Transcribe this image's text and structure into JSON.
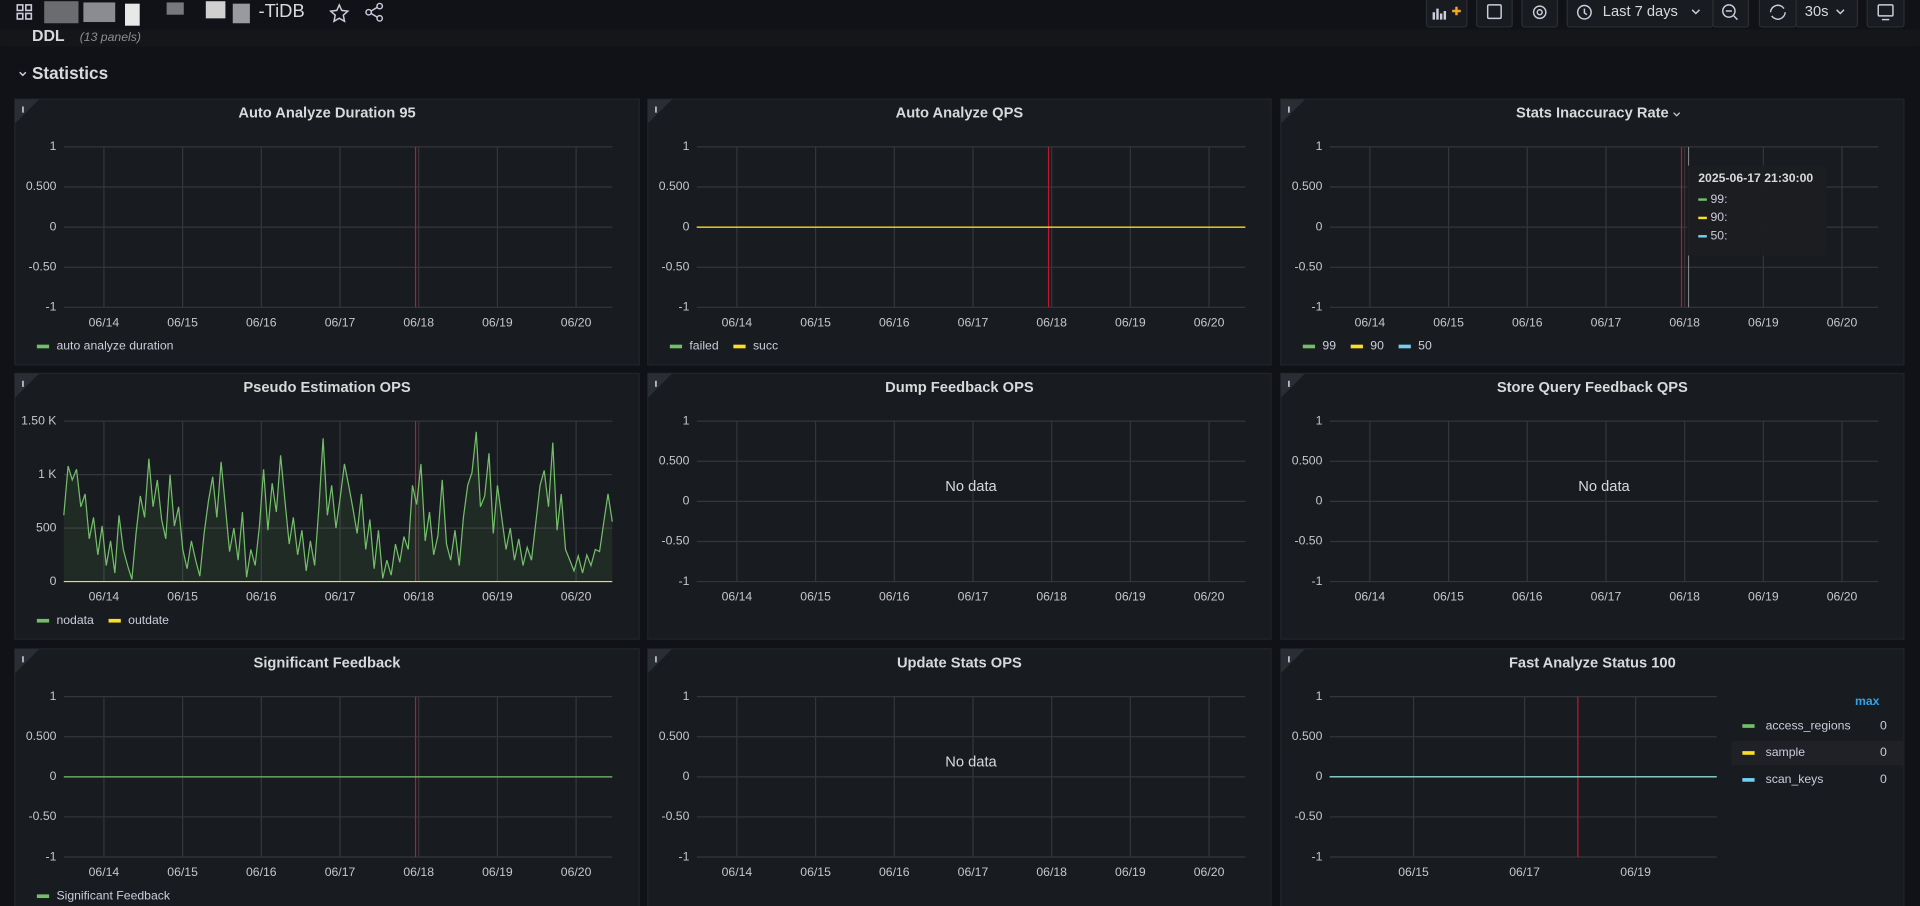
{
  "header": {
    "title": "-TiDB",
    "time_range": "Last 7 days",
    "refresh": "30s"
  },
  "rows": [
    {
      "title": "DDL",
      "note": "(13 panels)"
    },
    {
      "title": "Statistics"
    }
  ],
  "chart_data": [
    {
      "type": "line",
      "title": "Auto Analyze Duration 95",
      "ylim": [
        -1,
        1
      ],
      "yticks": [
        -1,
        {
          "value": -0.5,
          "label": "-0.50"
        },
        0,
        {
          "value": 0.5,
          "label": "0.500"
        },
        1
      ],
      "xticks": [
        "06/14",
        "06/15",
        "06/16",
        "06/17",
        "06/18",
        "06/19",
        "06/20"
      ],
      "grid": true,
      "legend": "bottom",
      "series": [
        {
          "name": "auto analyze duration",
          "color": "#73bf69"
        }
      ]
    },
    {
      "type": "line",
      "title": "Auto Analyze QPS",
      "ylim": [
        -1,
        1
      ],
      "yticks": [
        -1,
        {
          "value": -0.5,
          "label": "-0.50"
        },
        0,
        {
          "value": 0.5,
          "label": "0.500"
        },
        1
      ],
      "xticks": [
        "06/14",
        "06/15",
        "06/16",
        "06/17",
        "06/18",
        "06/19",
        "06/20"
      ],
      "grid": true,
      "legend": "bottom",
      "series": [
        {
          "name": "failed",
          "color": "#73bf69",
          "values": [
            0,
            0
          ]
        },
        {
          "name": "succ",
          "color": "#fade2a",
          "values": [
            0,
            0
          ]
        }
      ]
    },
    {
      "type": "line",
      "title": "Stats Inaccuracy Rate",
      "ylim": [
        -1,
        1
      ],
      "yticks": [
        -1,
        {
          "value": -0.5,
          "label": "-0.50"
        },
        0,
        {
          "value": 0.5,
          "label": "0.500"
        },
        1
      ],
      "xticks": [
        "06/14",
        "06/15",
        "06/16",
        "06/17",
        "06/18",
        "06/19",
        "06/20"
      ],
      "grid": true,
      "legend": "bottom",
      "series": [
        {
          "name": "99",
          "color": "#73bf69"
        },
        {
          "name": "90",
          "color": "#fade2a"
        },
        {
          "name": "50",
          "color": "#73d0f0"
        }
      ],
      "tooltip": {
        "time": "2025-06-17 21:30:00",
        "items": [
          "99:",
          "90:",
          "50:"
        ]
      }
    },
    {
      "type": "line",
      "title": "Pseudo Estimation OPS",
      "ylim": [
        0,
        1500
      ],
      "yticks": [
        0,
        500,
        {
          "value": 1000,
          "label": "1 K"
        },
        {
          "value": 1500,
          "label": "1.50 K"
        }
      ],
      "xticks": [
        "06/14",
        "06/15",
        "06/16",
        "06/17",
        "06/18",
        "06/19",
        "06/20"
      ],
      "grid": true,
      "legend": "bottom",
      "series": [
        {
          "name": "nodata",
          "color": "#73bf69",
          "fill": true,
          "values": [
            620,
            1080,
            950,
            1050,
            700,
            820,
            400,
            600,
            250,
            520,
            150,
            380,
            80,
            620,
            300,
            150,
            20,
            450,
            800,
            600,
            1150,
            700,
            950,
            580,
            400,
            1000,
            520,
            700,
            300,
            120,
            380,
            200,
            50,
            450,
            750,
            980,
            600,
            1120,
            700,
            280,
            500,
            200,
            650,
            40,
            300,
            150,
            520,
            1050,
            480,
            920,
            650,
            1180,
            760,
            350,
            600,
            250,
            480,
            100,
            380,
            150,
            700,
            1340,
            620,
            900,
            500,
            780,
            1100,
            900,
            680,
            450,
            820,
            300,
            580,
            120,
            480,
            30,
            200,
            60,
            350,
            180,
            420,
            300,
            900,
            720,
            1100,
            380,
            650,
            250,
            430,
            950,
            350,
            200,
            480,
            150,
            600,
            900,
            1020,
            1400,
            700,
            800,
            1200,
            450,
            900,
            600,
            300,
            500,
            200,
            400,
            150,
            320,
            200,
            550,
            900,
            1040,
            700,
            1300,
            480,
            820,
            300,
            200,
            100,
            240,
            80,
            250,
            150,
            300,
            280,
            560,
            820,
            560
          ]
        },
        {
          "name": "outdate",
          "color": "#fade2a",
          "values": [
            0,
            0
          ]
        }
      ]
    },
    {
      "type": "line",
      "title": "Dump Feedback OPS",
      "ylim": [
        -1,
        1
      ],
      "yticks": [
        -1,
        {
          "value": -0.5,
          "label": "-0.50"
        },
        0,
        {
          "value": 0.5,
          "label": "0.500"
        },
        1
      ],
      "xticks": [
        "06/14",
        "06/15",
        "06/16",
        "06/17",
        "06/18",
        "06/19",
        "06/20"
      ],
      "grid": true,
      "message": "No data",
      "series": []
    },
    {
      "type": "line",
      "title": "Store Query Feedback QPS",
      "ylim": [
        -1,
        1
      ],
      "yticks": [
        -1,
        {
          "value": -0.5,
          "label": "-0.50"
        },
        0,
        {
          "value": 0.5,
          "label": "0.500"
        },
        1
      ],
      "xticks": [
        "06/14",
        "06/15",
        "06/16",
        "06/17",
        "06/18",
        "06/19",
        "06/20"
      ],
      "grid": true,
      "message": "No data",
      "series": []
    },
    {
      "type": "line",
      "title": "Significant Feedback",
      "ylim": [
        -1,
        1
      ],
      "yticks": [
        -1,
        {
          "value": -0.5,
          "label": "-0.50"
        },
        0,
        {
          "value": 0.5,
          "label": "0.500"
        },
        1
      ],
      "xticks": [
        "06/14",
        "06/15",
        "06/16",
        "06/17",
        "06/18",
        "06/19",
        "06/20"
      ],
      "grid": true,
      "legend": "bottom",
      "series": [
        {
          "name": "Significant Feedback",
          "color": "#73bf69",
          "values": [
            0,
            0
          ]
        }
      ]
    },
    {
      "type": "line",
      "title": "Update Stats OPS",
      "ylim": [
        -1,
        1
      ],
      "yticks": [
        -1,
        {
          "value": -0.5,
          "label": "-0.50"
        },
        0,
        {
          "value": 0.5,
          "label": "0.500"
        },
        1
      ],
      "xticks": [
        "06/14",
        "06/15",
        "06/16",
        "06/17",
        "06/18",
        "06/19",
        "06/20"
      ],
      "grid": true,
      "message": "No data",
      "series": []
    },
    {
      "type": "line",
      "title": "Fast Analyze Status 100",
      "ylim": [
        -1,
        1
      ],
      "yticks": [
        -1,
        {
          "value": -0.5,
          "label": "-0.50"
        },
        0,
        {
          "value": 0.5,
          "label": "0.500"
        },
        1
      ],
      "xticks": [
        "06/15",
        "06/17",
        "06/19"
      ],
      "grid": true,
      "legend": "right",
      "legend_column": "max",
      "series": [
        {
          "name": "access_regions",
          "color": "#73bf69",
          "values": [
            0,
            0
          ],
          "max": 0
        },
        {
          "name": "sample",
          "color": "#fade2a",
          "values": [
            0,
            0
          ],
          "max": 0
        },
        {
          "name": "scan_keys",
          "color": "#73d0f0",
          "values": [
            0,
            0
          ],
          "max": 0
        }
      ]
    }
  ]
}
